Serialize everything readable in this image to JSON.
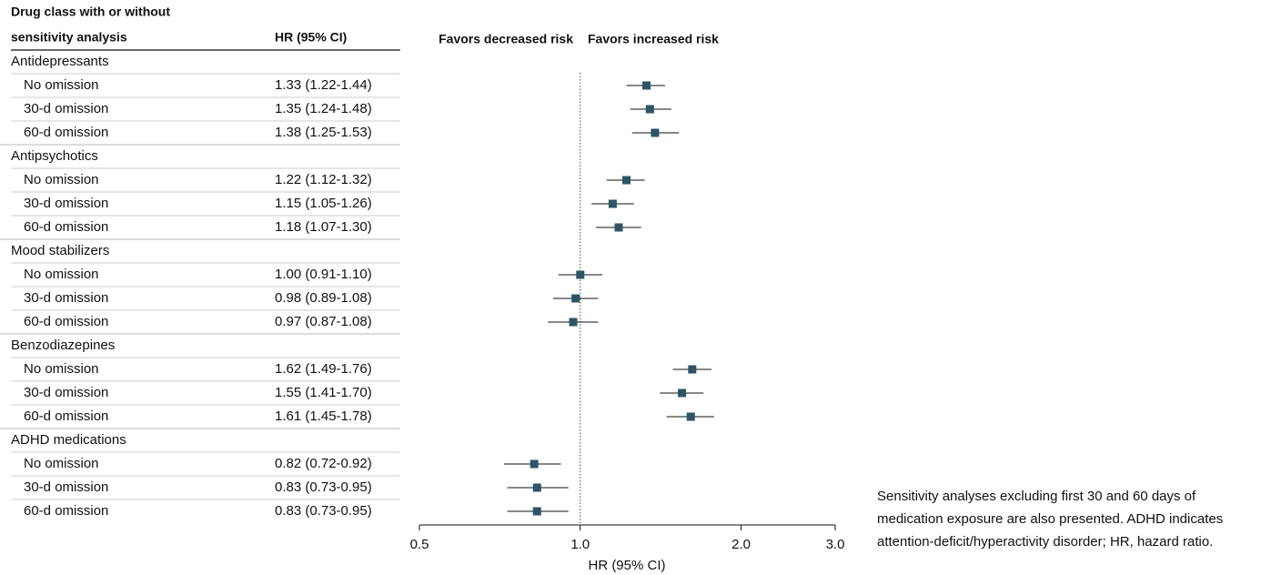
{
  "chart_data": {
    "type": "forest",
    "column_headers": [
      [
        "Drug class with or without",
        "sensitivity analysis"
      ],
      "HR (95% CI)"
    ],
    "favors_left": "Favors decreased risk",
    "favors_right": "Favors increased risk",
    "xlabel": "HR (95% CI)",
    "xscale": "log",
    "xlim": [
      0.5,
      3.0
    ],
    "xticks": [
      0.5,
      {
        "value": 1,
        "label": "1.0"
      },
      {
        "value": 2,
        "label": "2.0"
      },
      {
        "value": 3,
        "label": "3.0"
      }
    ],
    "reference": 1,
    "color": "#2d5566",
    "groups": [
      {
        "name": "Antidepressants",
        "rows": [
          {
            "label": "No omission",
            "hr": 1.33,
            "ci": [
              1.22,
              1.44
            ],
            "value_label": "1.33 (1.22-1.44)"
          },
          {
            "label": "30-d omission",
            "hr": 1.35,
            "ci": [
              1.24,
              1.48
            ],
            "value_label": "1.35 (1.24-1.48)"
          },
          {
            "label": "60-d omission",
            "hr": 1.38,
            "ci": [
              1.25,
              1.53
            ],
            "value_label": "1.38 (1.25-1.53)"
          }
        ]
      },
      {
        "name": "Antipsychotics",
        "rows": [
          {
            "label": "No omission",
            "hr": 1.22,
            "ci": [
              1.12,
              1.32
            ],
            "value_label": "1.22 (1.12-1.32)"
          },
          {
            "label": "30-d omission",
            "hr": 1.15,
            "ci": [
              1.05,
              1.26
            ],
            "value_label": "1.15 (1.05-1.26)"
          },
          {
            "label": "60-d omission",
            "hr": 1.18,
            "ci": [
              1.07,
              1.3
            ],
            "value_label": "1.18 (1.07-1.30)"
          }
        ]
      },
      {
        "name": "Mood stabilizers",
        "rows": [
          {
            "label": "No omission",
            "hr": 1.0,
            "ci": [
              0.91,
              1.1
            ],
            "value_label": "1.00 (0.91-1.10)"
          },
          {
            "label": "30-d omission",
            "hr": 0.98,
            "ci": [
              0.89,
              1.08
            ],
            "value_label": "0.98 (0.89-1.08)"
          },
          {
            "label": "60-d omission",
            "hr": 0.97,
            "ci": [
              0.87,
              1.08
            ],
            "value_label": "0.97 (0.87-1.08)"
          }
        ]
      },
      {
        "name": "Benzodiazepines",
        "rows": [
          {
            "label": "No omission",
            "hr": 1.62,
            "ci": [
              1.49,
              1.76
            ],
            "value_label": "1.62 (1.49-1.76)"
          },
          {
            "label": "30-d omission",
            "hr": 1.55,
            "ci": [
              1.41,
              1.7
            ],
            "value_label": "1.55 (1.41-1.70)"
          },
          {
            "label": "60-d omission",
            "hr": 1.61,
            "ci": [
              1.45,
              1.78
            ],
            "value_label": "1.61 (1.45-1.78)"
          }
        ]
      },
      {
        "name": "ADHD medications",
        "rows": [
          {
            "label": "No omission",
            "hr": 0.82,
            "ci": [
              0.72,
              0.92
            ],
            "value_label": "0.82 (0.72-0.92)"
          },
          {
            "label": "30-d omission",
            "hr": 0.83,
            "ci": [
              0.73,
              0.95
            ],
            "value_label": "0.83 (0.73-0.95)"
          },
          {
            "label": "60-d omission",
            "hr": 0.83,
            "ci": [
              0.73,
              0.95
            ],
            "value_label": "0.83 (0.73-0.95)"
          }
        ]
      }
    ],
    "caption": "Sensitivity analyses excluding first 30 and 60 days of medication exposure are also presented. ADHD indicates attention-deficit/hyperactivity disorder; HR, hazard ratio."
  }
}
